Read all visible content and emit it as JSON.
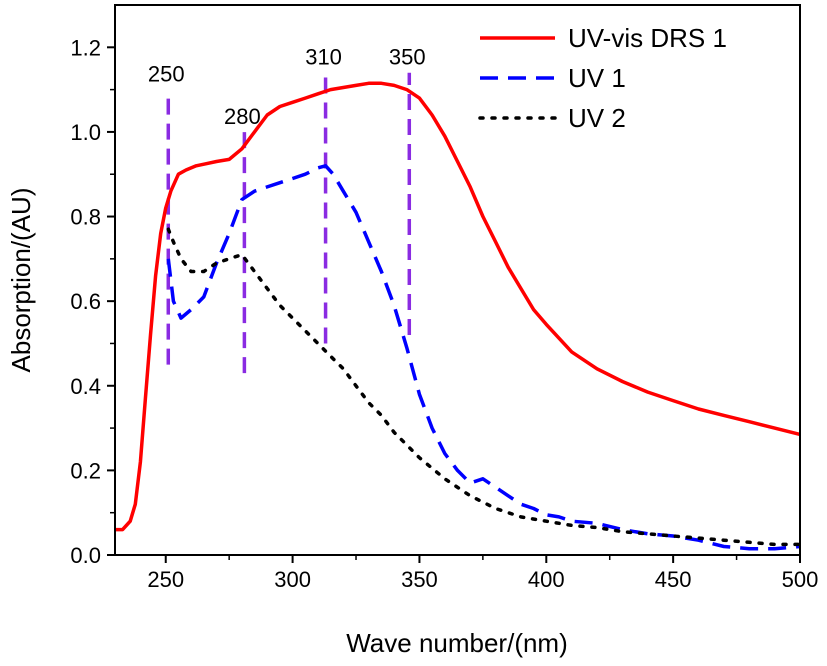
{
  "chart_data": {
    "type": "line",
    "title": "",
    "xlabel": "Wave number/(nm)",
    "ylabel": "Absorption/(AU)",
    "xlim": [
      230,
      500
    ],
    "ylim": [
      0.0,
      1.3
    ],
    "xticks": [
      250,
      300,
      350,
      400,
      450,
      500
    ],
    "xtick_labels": [
      "250",
      "300",
      "350",
      "400",
      "450",
      "500"
    ],
    "yticks": [
      0.0,
      0.2,
      0.4,
      0.6,
      0.8,
      1.0,
      1.2
    ],
    "ytick_labels": [
      "0.0",
      "0.2",
      "0.4",
      "0.6",
      "0.8",
      "1.0",
      "1.2"
    ],
    "grid": false,
    "legend_position": "top-right",
    "series": [
      {
        "name": "UV-vis DRS  1",
        "color": "#ff0000",
        "style": "solid",
        "x": [
          230,
          233,
          236,
          238,
          240,
          242,
          244,
          246,
          248,
          250,
          252,
          255,
          258,
          262,
          266,
          270,
          275,
          280,
          285,
          290,
          295,
          300,
          305,
          310,
          315,
          320,
          325,
          330,
          335,
          340,
          345,
          350,
          355,
          360,
          365,
          370,
          375,
          380,
          385,
          390,
          395,
          400,
          410,
          420,
          430,
          440,
          450,
          460,
          470,
          480,
          490,
          500
        ],
        "y": [
          0.06,
          0.06,
          0.08,
          0.12,
          0.22,
          0.37,
          0.52,
          0.66,
          0.76,
          0.82,
          0.86,
          0.9,
          0.91,
          0.92,
          0.925,
          0.93,
          0.935,
          0.96,
          1.0,
          1.04,
          1.06,
          1.07,
          1.08,
          1.09,
          1.1,
          1.105,
          1.11,
          1.115,
          1.115,
          1.11,
          1.1,
          1.08,
          1.04,
          0.99,
          0.93,
          0.87,
          0.8,
          0.74,
          0.68,
          0.63,
          0.58,
          0.545,
          0.48,
          0.44,
          0.41,
          0.385,
          0.365,
          0.345,
          0.33,
          0.315,
          0.3,
          0.285
        ]
      },
      {
        "name": "UV 1",
        "color": "#0000ff",
        "style": "dashed",
        "x": [
          251,
          253,
          256,
          260,
          265,
          270,
          275,
          280,
          285,
          290,
          295,
          300,
          305,
          310,
          313,
          316,
          320,
          325,
          330,
          335,
          340,
          345,
          350,
          355,
          360,
          365,
          370,
          375,
          380,
          385,
          390,
          395,
          400,
          405,
          410,
          420,
          430,
          440,
          450,
          460,
          470,
          480,
          490,
          500
        ],
        "y": [
          0.7,
          0.6,
          0.56,
          0.58,
          0.61,
          0.69,
          0.76,
          0.84,
          0.86,
          0.87,
          0.88,
          0.89,
          0.9,
          0.915,
          0.92,
          0.9,
          0.86,
          0.81,
          0.74,
          0.67,
          0.59,
          0.49,
          0.38,
          0.3,
          0.24,
          0.2,
          0.17,
          0.18,
          0.16,
          0.14,
          0.12,
          0.11,
          0.095,
          0.09,
          0.08,
          0.075,
          0.06,
          0.05,
          0.045,
          0.035,
          0.02,
          0.015,
          0.015,
          0.02
        ]
      },
      {
        "name": "UV 2",
        "color": "#000000",
        "style": "dotted",
        "x": [
          251,
          253,
          256,
          260,
          265,
          270,
          275,
          280,
          285,
          290,
          295,
          300,
          305,
          310,
          315,
          320,
          325,
          330,
          335,
          340,
          345,
          350,
          360,
          370,
          380,
          390,
          400,
          410,
          420,
          430,
          440,
          450,
          460,
          470,
          480,
          490,
          500
        ],
        "y": [
          0.77,
          0.74,
          0.7,
          0.67,
          0.67,
          0.69,
          0.7,
          0.71,
          0.67,
          0.63,
          0.59,
          0.56,
          0.53,
          0.5,
          0.47,
          0.44,
          0.4,
          0.36,
          0.33,
          0.29,
          0.26,
          0.23,
          0.18,
          0.14,
          0.11,
          0.09,
          0.08,
          0.07,
          0.065,
          0.055,
          0.05,
          0.045,
          0.04,
          0.035,
          0.03,
          0.025,
          0.025
        ]
      }
    ],
    "annotations": [
      {
        "label": "250",
        "x": 251,
        "y_from": 0.45,
        "y_to": 1.1,
        "color": "#8a2be2"
      },
      {
        "label": "280",
        "x": 281,
        "y_from": 0.43,
        "y_to": 1.0,
        "color": "#8a2be2"
      },
      {
        "label": "310",
        "x": 313,
        "y_from": 0.5,
        "y_to": 1.14,
        "color": "#8a2be2"
      },
      {
        "label": "350",
        "x": 346,
        "y_from": 0.52,
        "y_to": 1.14,
        "color": "#8a2be2"
      }
    ]
  }
}
